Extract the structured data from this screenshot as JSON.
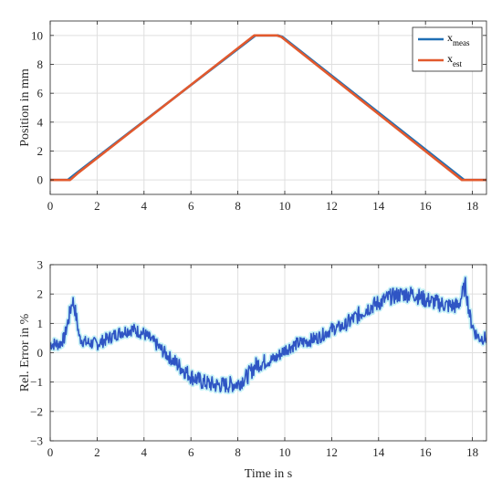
{
  "chart_data": [
    {
      "type": "line",
      "ylabel": "Position in mm",
      "xlabel": "",
      "xlim": [
        0,
        18.6
      ],
      "ylim": [
        -1,
        11
      ],
      "xticks": [
        0,
        2,
        4,
        6,
        8,
        10,
        12,
        14,
        16,
        18
      ],
      "yticks": [
        0,
        2,
        4,
        6,
        8,
        10
      ],
      "grid": true,
      "legend": {
        "placement": "top-right",
        "entries": [
          {
            "base": "x",
            "sub": "meas"
          },
          {
            "base": "x",
            "sub": "est"
          }
        ]
      },
      "series": [
        {
          "name": "x_meas",
          "color": "#1f6fb4",
          "x": [
            0,
            0.75,
            1.1,
            8.75,
            9.0,
            9.7,
            9.9,
            17.65,
            17.9,
            18.6
          ],
          "y": [
            0,
            0,
            0.45,
            10,
            10,
            10,
            9.9,
            0,
            0,
            0
          ]
        },
        {
          "name": "x_est",
          "color": "#e2592d",
          "x": [
            0,
            0.85,
            1.2,
            8.7,
            8.95,
            9.65,
            9.85,
            17.55,
            17.85,
            18.6
          ],
          "y": [
            0,
            0,
            0.5,
            10,
            10,
            10,
            9.9,
            0,
            0,
            0
          ]
        }
      ]
    },
    {
      "type": "line",
      "ylabel": "Rel. Error in %",
      "xlabel": "Time in s",
      "xlim": [
        0,
        18.6
      ],
      "ylim": [
        -3,
        3
      ],
      "xticks": [
        0,
        2,
        4,
        6,
        8,
        10,
        12,
        14,
        16,
        18
      ],
      "yticks": [
        -3,
        -2,
        -1,
        0,
        1,
        2,
        3
      ],
      "grid": true,
      "series": [
        {
          "name": "",
          "color": "#2f55c4",
          "halo_color": "#7fe0ea",
          "x": [
            0,
            0.4,
            0.6,
            0.8,
            0.95,
            1.05,
            1.25,
            1.5,
            2.0,
            2.5,
            3.0,
            3.5,
            4.0,
            4.5,
            5.0,
            5.5,
            6.0,
            6.5,
            7.0,
            7.5,
            8.0,
            8.4,
            8.6,
            8.8,
            9.2,
            9.6,
            10.0,
            10.5,
            11.0,
            11.5,
            12.0,
            12.5,
            13.0,
            13.5,
            14.0,
            14.5,
            15.0,
            15.5,
            16.0,
            16.5,
            17.0,
            17.4,
            17.7,
            17.9,
            18.1,
            18.3,
            18.6
          ],
          "y": [
            0.3,
            0.3,
            0.5,
            1.2,
            1.8,
            1.5,
            0.5,
            0.35,
            0.3,
            0.5,
            0.7,
            0.8,
            0.65,
            0.3,
            -0.1,
            -0.45,
            -0.8,
            -1.0,
            -1.1,
            -1.1,
            -1.05,
            -0.8,
            -0.6,
            -0.4,
            -0.3,
            -0.2,
            0.1,
            0.3,
            0.4,
            0.55,
            0.8,
            0.9,
            1.2,
            1.5,
            1.7,
            1.9,
            2.0,
            2.0,
            1.8,
            1.7,
            1.6,
            1.6,
            2.3,
            1.2,
            0.7,
            0.5,
            0.5
          ]
        }
      ]
    }
  ]
}
